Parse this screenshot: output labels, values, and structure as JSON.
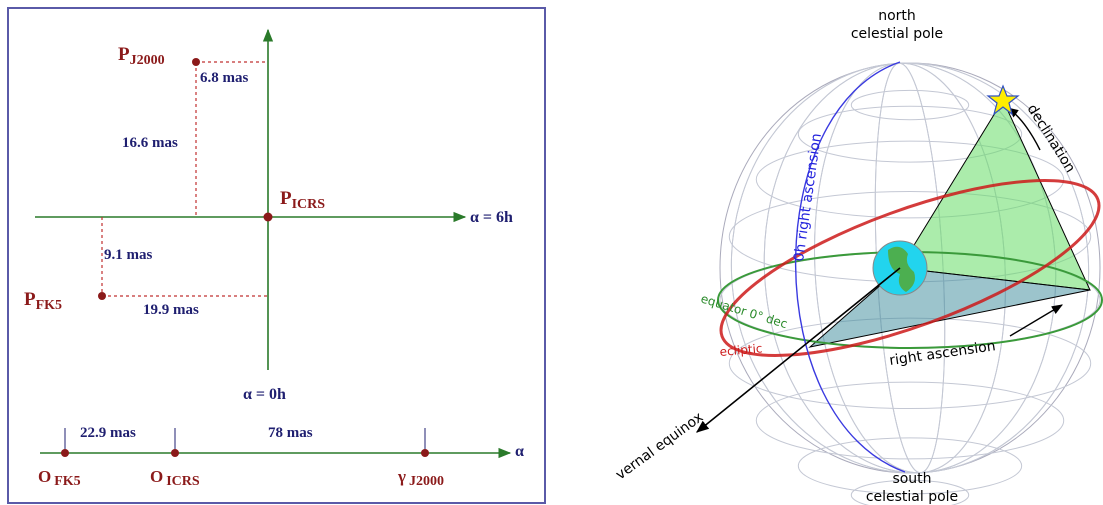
{
  "left_panel": {
    "points": {
      "p_j2000": {
        "base": "P",
        "sub": "J2000"
      },
      "p_icrs": {
        "base": "P",
        "sub": "ICRS"
      },
      "p_fk5": {
        "base": "P",
        "sub": "FK5"
      }
    },
    "offsets": {
      "j2000_ra": "6.8 mas",
      "j2000_dec": "16.6 mas",
      "fk5_dec": "9.1 mas",
      "fk5_ra": "19.9 mas"
    },
    "axes": {
      "ra_6h": "α = 6h",
      "ra_0h": "α = 0h",
      "alpha": "α"
    },
    "origins": {
      "o_fk5": {
        "base": "O",
        "sub": "FK5"
      },
      "o_icrs": {
        "base": "O",
        "sub": "ICRS"
      },
      "gamma_j2000": {
        "base": "γ",
        "sub": "J2000"
      }
    },
    "origin_offsets": {
      "fk5_icrs": "22.9 mas",
      "icrs_gamma": "78 mas"
    }
  },
  "right_panel": {
    "north_pole": [
      "north",
      "celestial pole"
    ],
    "south_pole": [
      "south",
      "celestial pole"
    ],
    "zero_h": "0h right ascension",
    "declination": "declination",
    "equator": "equator  0° dec",
    "ecliptic": "ecliptic",
    "right_ascension": "right ascension",
    "vernal_equinox": "vernal equinox"
  }
}
